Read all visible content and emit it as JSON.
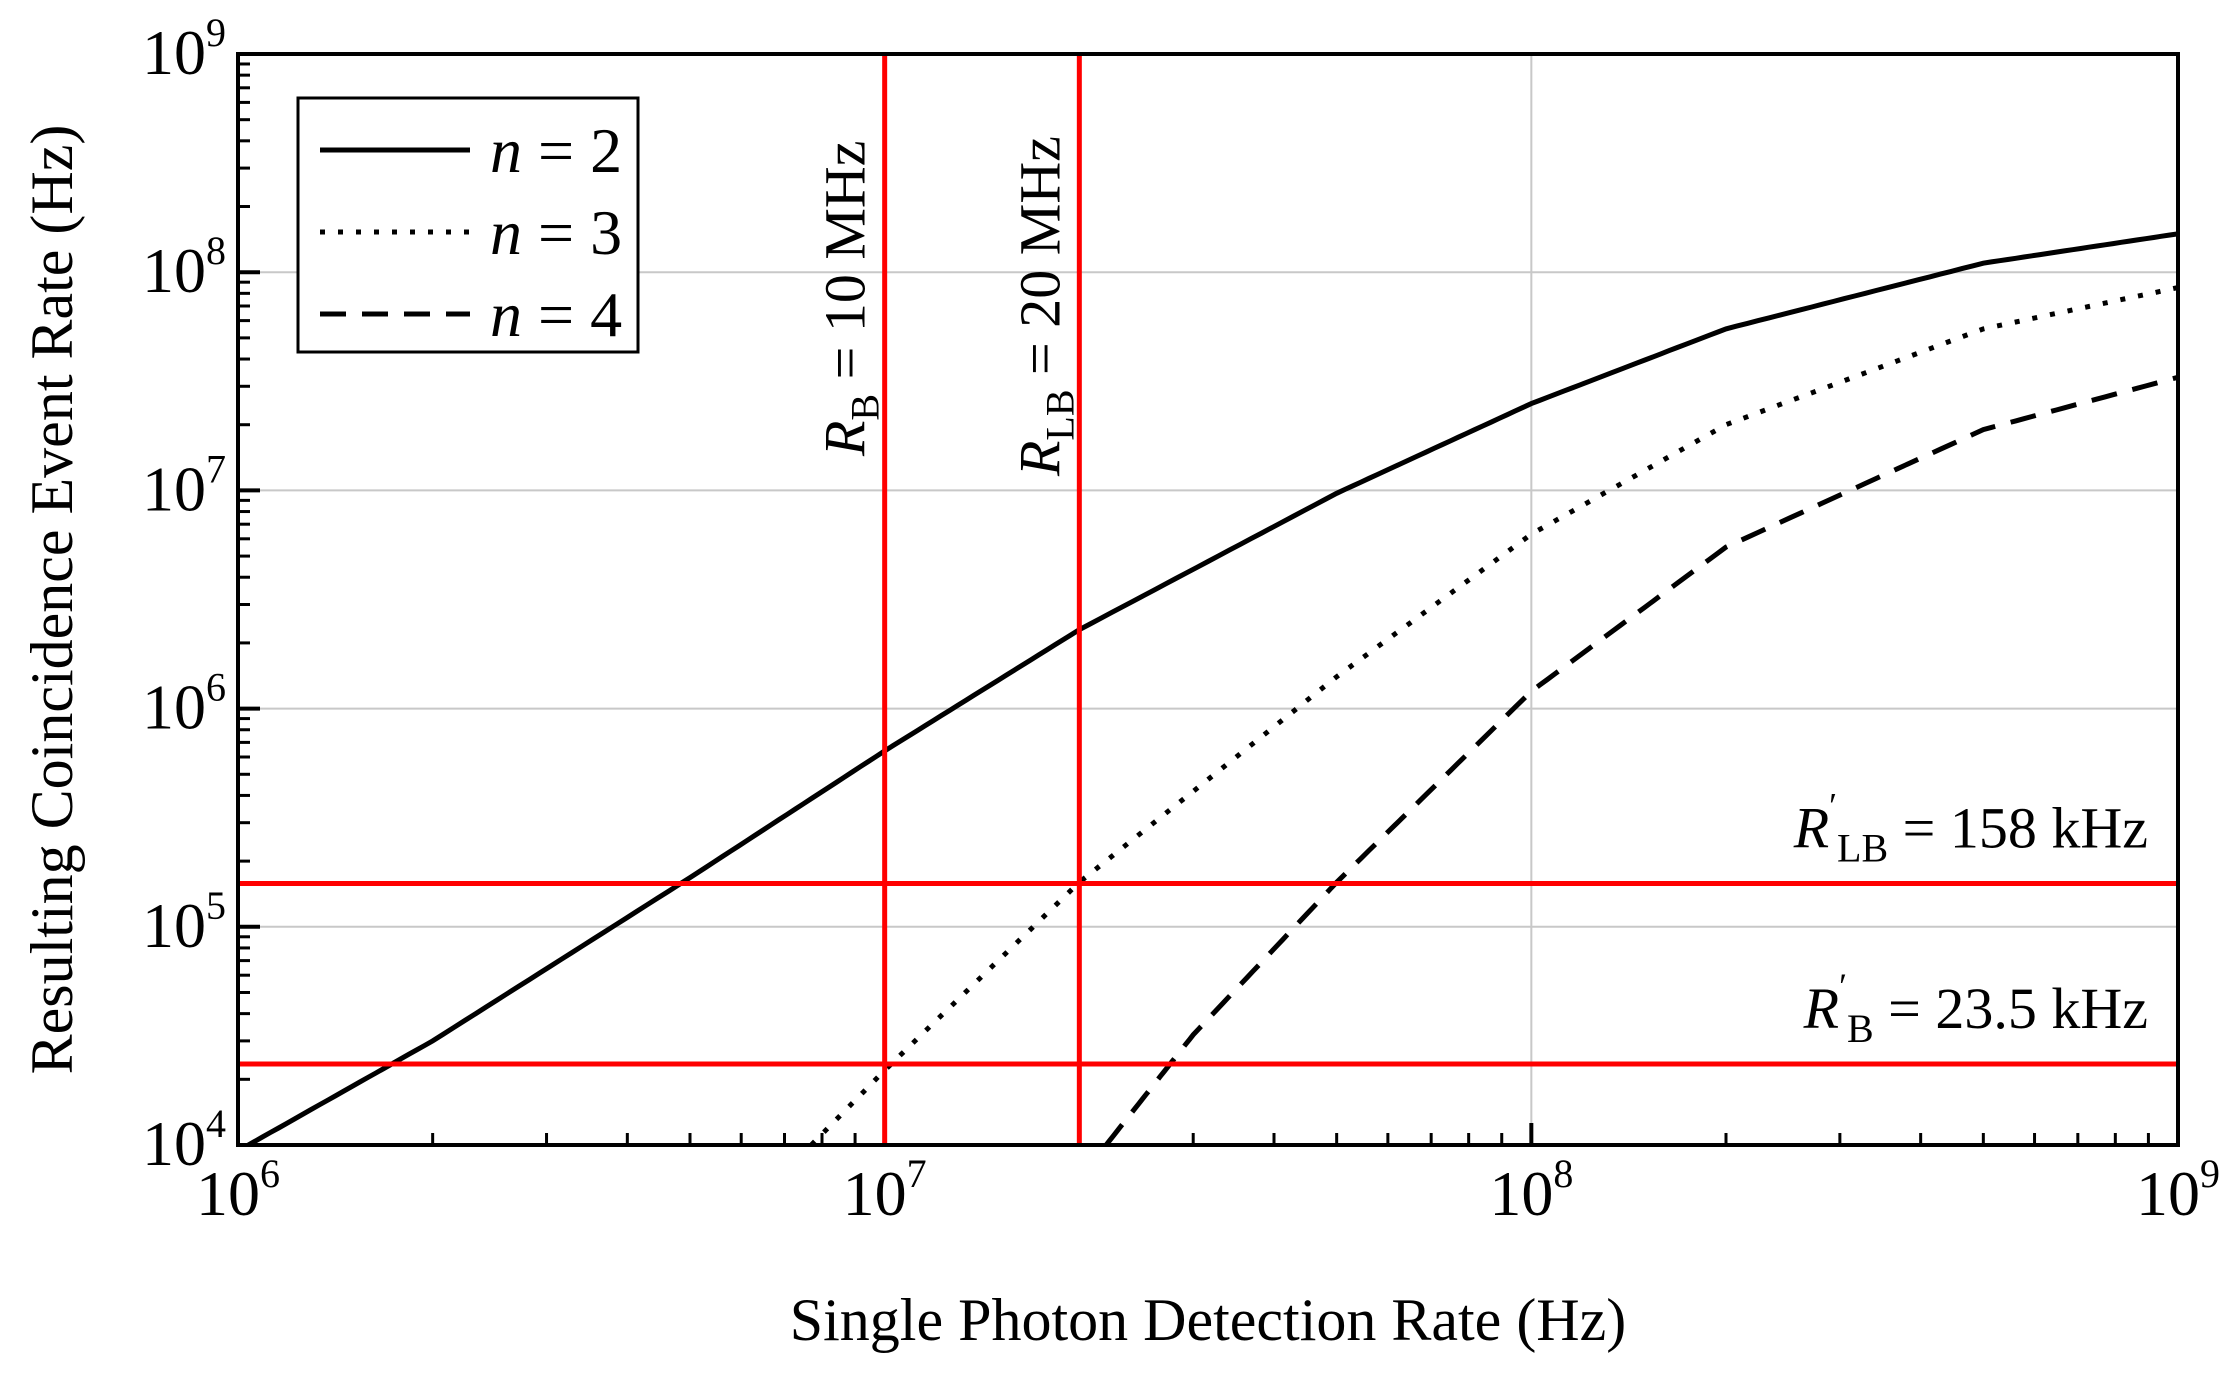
{
  "chart_data": {
    "type": "line",
    "title": "",
    "xlabel": "Single Photon Detection Rate (Hz)",
    "ylabel": "Resulting Coincidence Event Rate (Hz)",
    "xscale": "log",
    "yscale": "log",
    "xlim": [
      1000000,
      1000000000
    ],
    "ylim": [
      10000,
      1000000000
    ],
    "grid": true,
    "legend_position": "top-left",
    "x_ticks": [
      {
        "value": 1000000,
        "base": "10",
        "exp": "6"
      },
      {
        "value": 10000000,
        "base": "10",
        "exp": "7"
      },
      {
        "value": 100000000,
        "base": "10",
        "exp": "8"
      },
      {
        "value": 1000000000,
        "base": "10",
        "exp": "9"
      }
    ],
    "y_ticks": [
      {
        "value": 10000,
        "base": "10",
        "exp": "4"
      },
      {
        "value": 100000,
        "base": "10",
        "exp": "5"
      },
      {
        "value": 1000000,
        "base": "10",
        "exp": "6"
      },
      {
        "value": 10000000,
        "base": "10",
        "exp": "7"
      },
      {
        "value": 100000000,
        "base": "10",
        "exp": "8"
      },
      {
        "value": 1000000000,
        "base": "10",
        "exp": "9"
      }
    ],
    "series": [
      {
        "name": "n = 2",
        "var": "n",
        "eq": "= 2",
        "style": "solid",
        "color": "#000000",
        "x": [
          1000000,
          2000000,
          5000000,
          10000000,
          20000000,
          50000000,
          100000000,
          200000000,
          500000000,
          1000000000
        ],
        "y": [
          9400,
          30000,
          168000,
          640000,
          2300000,
          9700000,
          25000000,
          55000000,
          110000000,
          150000000
        ]
      },
      {
        "name": "n = 3",
        "var": "n",
        "eq": "= 3",
        "style": "dotted",
        "color": "#000000",
        "x": [
          7700000,
          10000000,
          20000000,
          50000000,
          100000000,
          200000000,
          500000000,
          1000000000
        ],
        "y": [
          10000,
          22000,
          160000,
          1400000,
          6300000,
          20000000,
          55000000,
          85000000
        ]
      },
      {
        "name": "n = 4",
        "var": "n",
        "eq": "= 4",
        "style": "dashed",
        "color": "#000000",
        "x": [
          22000000,
          30000000,
          50000000,
          100000000,
          200000000,
          500000000,
          1000000000
        ],
        "y": [
          10000,
          32000,
          160000,
          1200000,
          5500000,
          19000000,
          33000000
        ]
      }
    ],
    "reference_lines": [
      {
        "orientation": "vertical",
        "value": 10000000,
        "sym": "R",
        "sub": "B",
        "prime": false,
        "rhs": "= 10 MHz",
        "color": "#ff0000"
      },
      {
        "orientation": "vertical",
        "value": 20000000,
        "sym": "R",
        "sub": "LB",
        "prime": false,
        "rhs": "= 20 MHz",
        "color": "#ff0000"
      },
      {
        "orientation": "horizontal",
        "value": 158000,
        "sym": "R",
        "sub": "LB",
        "prime": true,
        "rhs": "= 158 kHz",
        "color": "#ff0000"
      },
      {
        "orientation": "horizontal",
        "value": 23500,
        "sym": "R",
        "sub": "B",
        "prime": true,
        "rhs": "= 23.5 kHz",
        "color": "#ff0000"
      }
    ]
  }
}
